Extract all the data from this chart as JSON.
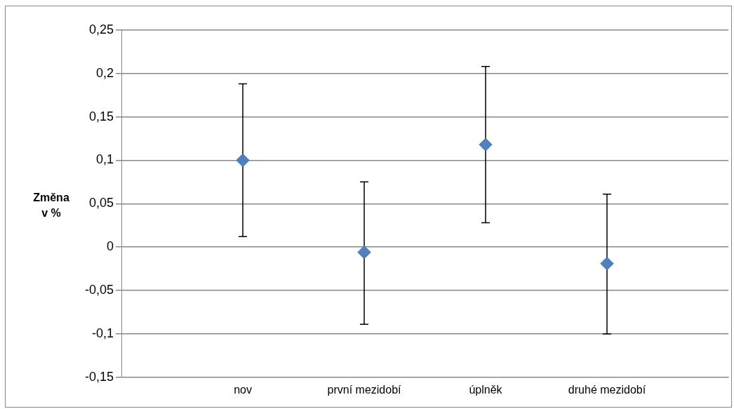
{
  "chart_data": {
    "type": "scatter",
    "ylabel": "Změna v %",
    "categories": [
      null,
      "nov",
      "první mezidobí",
      "úplněk",
      "druhé mezidobí",
      null
    ],
    "values": [
      null,
      0.1,
      -0.006,
      0.118,
      -0.019,
      null
    ],
    "errors": [
      null,
      [
        0.012,
        0.188
      ],
      [
        -0.089,
        0.075
      ],
      [
        0.028,
        0.208
      ],
      [
        -0.1,
        0.061
      ],
      null
    ],
    "color": "#4f81bd",
    "marker": "diamond",
    "grid": "y",
    "ylim": [
      -0.15,
      0.25
    ],
    "yticks": [
      {
        "value": -0.15,
        "label": "-0,15"
      },
      {
        "value": -0.1,
        "label": "-0,1"
      },
      {
        "value": -0.05,
        "label": "-0,05"
      },
      {
        "value": 0,
        "label": "0"
      },
      {
        "value": 0.05,
        "label": "0,05"
      },
      {
        "value": 0.1,
        "label": "0,1"
      },
      {
        "value": 0.15,
        "label": "0,15"
      },
      {
        "value": 0.2,
        "label": "0,2"
      },
      {
        "value": 0.25,
        "label": "0,25"
      }
    ]
  }
}
